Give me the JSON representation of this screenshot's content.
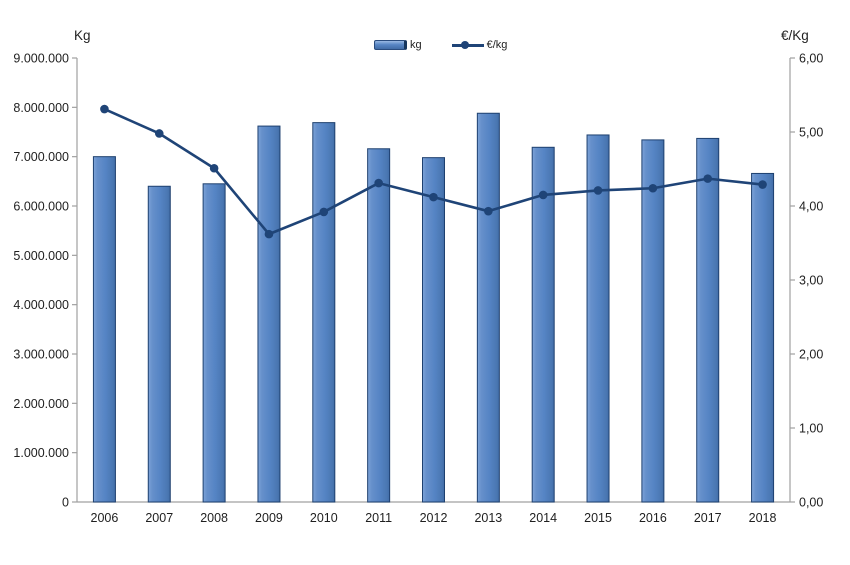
{
  "chart_data": {
    "type": "bar",
    "combo": "bar+line",
    "categories": [
      "2006",
      "2007",
      "2008",
      "2009",
      "2010",
      "2011",
      "2012",
      "2013",
      "2014",
      "2015",
      "2016",
      "2017",
      "2018"
    ],
    "series": [
      {
        "name": "kg",
        "type": "bar",
        "axis": "left",
        "values": [
          7000000,
          6400000,
          6450000,
          7620000,
          7690000,
          7160000,
          6980000,
          7880000,
          7190000,
          7440000,
          7340000,
          7370000,
          6660000
        ]
      },
      {
        "name": "€/kg",
        "type": "line",
        "axis": "right",
        "values": [
          5.31,
          4.98,
          4.51,
          3.62,
          3.92,
          4.31,
          4.12,
          3.93,
          4.15,
          4.21,
          4.24,
          4.37,
          4.29
        ]
      }
    ],
    "left_axis": {
      "label": "Kg",
      "min": 0,
      "max": 9000000,
      "step": 1000000,
      "tick_labels": [
        "9.000.000",
        "8.000.000",
        "7.000.000",
        "6.000.000",
        "5.000.000",
        "4.000.000",
        "3.000.000",
        "2.000.000",
        "1.000.000",
        "0"
      ]
    },
    "right_axis": {
      "label": "€/Kg",
      "min": 0,
      "max": 6,
      "step": 1,
      "tick_labels": [
        "6,00",
        "5,00",
        "4,00",
        "3,00",
        "2,00",
        "1,00",
        "0,00"
      ]
    },
    "title": "",
    "grid": false,
    "legend_position": "top-center",
    "colors": {
      "bar_fill": "#5584C4",
      "bar_fill_light": "#7DA3D8",
      "bar_fill_dark": "#416CA6",
      "bar_edge": "#1E406F",
      "line": "#1F4477",
      "axis": "#A0A0A0",
      "text": "#1F1F1F"
    }
  }
}
